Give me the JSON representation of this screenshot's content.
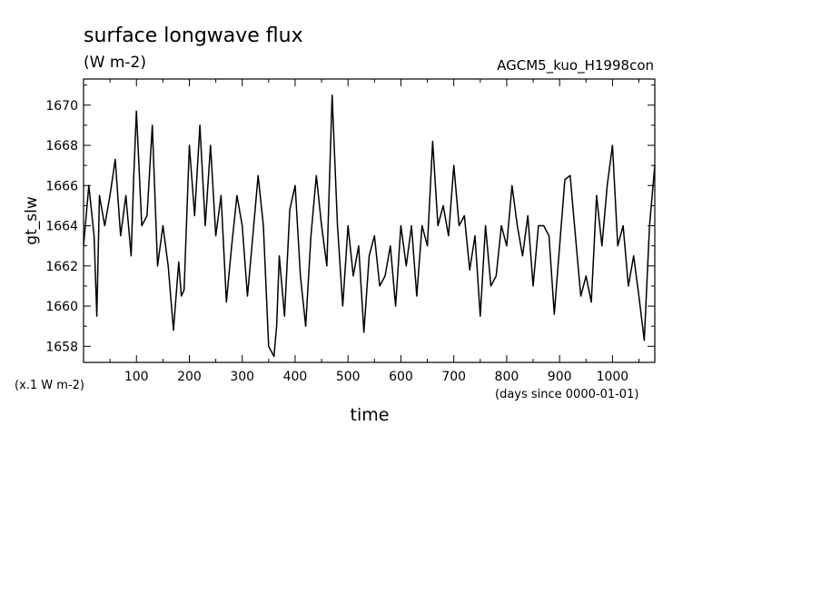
{
  "chart_data": {
    "type": "line",
    "title": "surface longwave flux",
    "units": "(W m-2)",
    "dataset": "AGCM5_kuo_H1998con",
    "ylabel": "gt_slw",
    "xlabel": "time",
    "x_units": "(days since 0000-01-01)",
    "y_scale_note": "(x.1 W m-2)",
    "xlim": [
      0,
      1080
    ],
    "ylim": [
      1657.2,
      1671.3
    ],
    "x_ticks": [
      100,
      200,
      300,
      400,
      500,
      600,
      700,
      800,
      900,
      1000
    ],
    "x_tick_labels": [
      "100",
      "200",
      "300",
      "400",
      "500",
      "600",
      "700",
      "800",
      "900",
      "1000"
    ],
    "y_ticks": [
      1658,
      1660,
      1662,
      1664,
      1666,
      1668,
      1670
    ],
    "y_tick_labels": [
      "1658",
      "1660",
      "1662",
      "1664",
      "1666",
      "1668",
      "1670"
    ],
    "grid": false,
    "line_color": "#000000",
    "series": [
      {
        "x": [
          0,
          10,
          20,
          25,
          30,
          40,
          50,
          60,
          70,
          80,
          90,
          95,
          100,
          110,
          120,
          130,
          140,
          150,
          160,
          170,
          180,
          185,
          190,
          200,
          210,
          220,
          230,
          240,
          250,
          260,
          270,
          280,
          290,
          300,
          310,
          320,
          330,
          340,
          350,
          360,
          365,
          370,
          380,
          390,
          400,
          410,
          420,
          430,
          440,
          450,
          460,
          470,
          480,
          490,
          500,
          510,
          520,
          530,
          540,
          550,
          560,
          570,
          580,
          590,
          600,
          610,
          620,
          630,
          640,
          650,
          660,
          670,
          680,
          690,
          700,
          710,
          720,
          730,
          740,
          750,
          760,
          770,
          780,
          790,
          800,
          810,
          820,
          830,
          840,
          850,
          860,
          870,
          880,
          890,
          900,
          910,
          920,
          930,
          940,
          950,
          960,
          970,
          980,
          990,
          1000,
          1010,
          1020,
          1030,
          1040,
          1050,
          1060,
          1070,
          1080
        ],
        "y": [
          1663.0,
          1666.0,
          1663.5,
          1659.5,
          1665.5,
          1664.0,
          1665.5,
          1667.3,
          1663.5,
          1665.5,
          1662.5,
          1666.5,
          1669.7,
          1664.0,
          1664.5,
          1669.0,
          1662.0,
          1664.0,
          1662.0,
          1658.8,
          1662.2,
          1660.5,
          1660.8,
          1668.0,
          1664.5,
          1669.0,
          1664.0,
          1668.0,
          1663.5,
          1665.5,
          1660.2,
          1663.0,
          1665.5,
          1664.0,
          1660.5,
          1663.5,
          1666.5,
          1664.0,
          1658.0,
          1657.5,
          1659.0,
          1662.5,
          1659.5,
          1664.8,
          1666.0,
          1661.5,
          1659.0,
          1663.5,
          1666.5,
          1664.0,
          1662.0,
          1670.5,
          1664.0,
          1660.0,
          1664.0,
          1661.5,
          1663.0,
          1658.7,
          1662.5,
          1663.5,
          1661.0,
          1661.5,
          1663.0,
          1660.0,
          1664.0,
          1662.0,
          1664.0,
          1660.5,
          1664.0,
          1663.0,
          1668.2,
          1664.0,
          1665.0,
          1663.5,
          1667.0,
          1664.0,
          1664.5,
          1661.8,
          1663.5,
          1659.5,
          1664.0,
          1661.0,
          1661.5,
          1664.0,
          1663.0,
          1666.0,
          1664.0,
          1662.5,
          1664.5,
          1661.0,
          1664.0,
          1664.0,
          1663.5,
          1659.6,
          1663.0,
          1666.3,
          1666.5,
          1663.5,
          1660.5,
          1661.5,
          1660.2,
          1665.5,
          1663.0,
          1666.0,
          1668.0,
          1663.0,
          1664.0,
          1661.0,
          1662.5,
          1660.5,
          1658.3,
          1664.0,
          1667.0
        ]
      }
    ]
  }
}
